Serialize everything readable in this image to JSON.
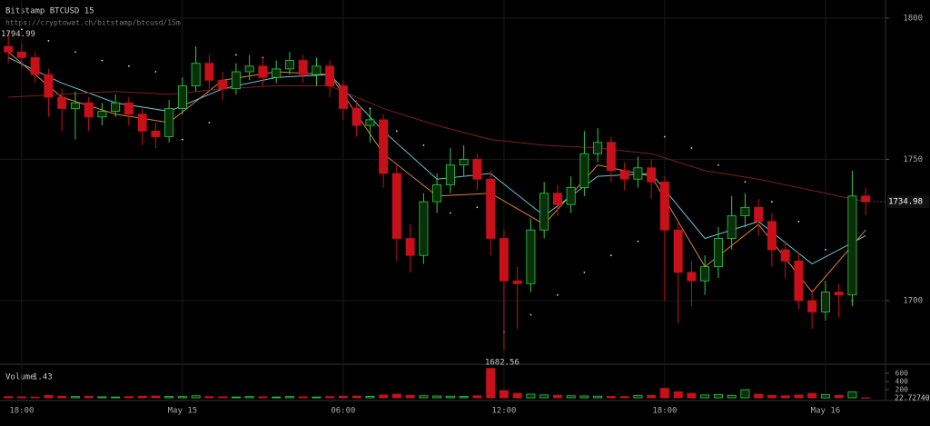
{
  "chart_data": {
    "type": "candlestick",
    "title": "Bitstamp BTCUSD 15",
    "subtitle": "https://cryptowat.ch/bitstamp/btcusd/15m",
    "volume_title": "Volume",
    "x": [
      -0.5,
      0,
      0.5,
      1,
      1.5,
      2,
      2.5,
      3,
      3.5,
      4,
      4.5,
      5,
      5.5,
      6,
      6.5,
      7,
      7.5,
      8,
      8.5,
      9,
      9.5,
      10,
      10.5,
      11,
      11.5,
      12,
      12.5,
      13,
      13.5,
      14,
      14.5,
      15,
      15.5,
      16,
      16.5,
      17,
      17.5,
      18,
      18.5,
      19,
      19.5,
      20,
      20.5,
      21,
      21.5,
      22,
      22.5,
      23,
      23.5,
      24,
      24.5,
      25,
      25.5,
      26,
      26.5,
      27,
      27.5,
      28,
      28.5,
      29,
      29.5,
      30,
      30.5,
      31,
      31.5
    ],
    "open": [
      1790,
      1788,
      1786,
      1780,
      1772,
      1768,
      1770,
      1765,
      1767,
      1770,
      1766,
      1760,
      1758,
      1768,
      1776,
      1784,
      1778,
      1775,
      1781,
      1783,
      1779,
      1782,
      1785,
      1780,
      1783,
      1776,
      1768,
      1762,
      1764,
      1745,
      1722,
      1716,
      1735,
      1741,
      1748,
      1750,
      1743,
      1722,
      1707,
      1706,
      1725,
      1738,
      1734,
      1740,
      1752,
      1756,
      1746,
      1743,
      1747,
      1742,
      1725,
      1710,
      1707,
      1712,
      1722,
      1730,
      1733,
      1728,
      1718,
      1714,
      1700,
      1696,
      1703,
      1702,
      1737
    ],
    "high": [
      1794.99,
      1791,
      1788,
      1782,
      1775,
      1774,
      1772,
      1770,
      1773,
      1772,
      1768,
      1763,
      1771,
      1779,
      1790,
      1787,
      1781,
      1784,
      1787,
      1786,
      1785,
      1788,
      1787,
      1786,
      1785,
      1778,
      1771,
      1768,
      1766,
      1748,
      1727,
      1738,
      1745,
      1754,
      1755,
      1752,
      1746,
      1725,
      1712,
      1729,
      1742,
      1741,
      1744,
      1760,
      1761,
      1758,
      1749,
      1751,
      1750,
      1744,
      1728,
      1714,
      1716,
      1726,
      1737,
      1738,
      1736,
      1731,
      1721,
      1717,
      1704,
      1707,
      1706,
      1746,
      1740
    ],
    "low": [
      1784,
      1782,
      1777,
      1765,
      1760,
      1757,
      1760,
      1762,
      1765,
      1762,
      1755,
      1754,
      1756,
      1766,
      1774,
      1775,
      1771,
      1773,
      1778,
      1776,
      1777,
      1780,
      1777,
      1776,
      1772,
      1764,
      1758,
      1756,
      1740,
      1714,
      1710,
      1713,
      1731,
      1738,
      1744,
      1739,
      1716,
      1682.56,
      1690,
      1703,
      1722,
      1730,
      1731,
      1737,
      1749,
      1742,
      1739,
      1740,
      1736,
      1700,
      1692,
      1698,
      1702,
      1708,
      1718,
      1726,
      1723,
      1712,
      1708,
      1697,
      1690,
      1693,
      1694,
      1698,
      1730
    ],
    "close": [
      1788,
      1786,
      1780,
      1772,
      1768,
      1770,
      1765,
      1767,
      1770,
      1766,
      1760,
      1758,
      1768,
      1776,
      1784,
      1778,
      1775,
      1781,
      1783,
      1779,
      1782,
      1785,
      1780,
      1783,
      1776,
      1768,
      1762,
      1764,
      1745,
      1722,
      1716,
      1735,
      1741,
      1748,
      1750,
      1743,
      1722,
      1707,
      1706,
      1725,
      1738,
      1734,
      1740,
      1752,
      1756,
      1746,
      1743,
      1747,
      1742,
      1725,
      1710,
      1707,
      1712,
      1722,
      1730,
      1733,
      1728,
      1718,
      1714,
      1700,
      1696,
      1703,
      1702,
      1737,
      1734.98
    ],
    "volume": [
      30,
      25,
      20,
      60,
      40,
      30,
      35,
      25,
      20,
      30,
      40,
      45,
      35,
      30,
      50,
      30,
      25,
      20,
      30,
      25,
      20,
      30,
      25,
      20,
      30,
      40,
      45,
      35,
      70,
      90,
      60,
      50,
      45,
      40,
      35,
      50,
      720,
      180,
      110,
      90,
      70,
      60,
      50,
      45,
      40,
      35,
      30,
      55,
      60,
      230,
      150,
      110,
      70,
      80,
      60,
      200,
      90,
      60,
      50,
      70,
      110,
      80,
      60,
      150,
      1.43
    ],
    "volume_ma_last": 22.727403,
    "up_color": "#2ecc40",
    "down_color": "#c8101a",
    "ma_x": [
      -0.5,
      1.5,
      3.5,
      5.5,
      7.5,
      9.5,
      11.5,
      13.5,
      15.5,
      17.5,
      19.5,
      21.5,
      23.5,
      25.5,
      27.5,
      29.5,
      31.5
    ],
    "lines": [
      {
        "color": "#d9823b",
        "values": [
          1788,
          1772,
          1766,
          1763,
          1778,
          1781,
          1780,
          1752,
          1737,
          1738,
          1727,
          1748,
          1744,
          1712,
          1727,
          1703,
          1725
        ]
      },
      {
        "color": "#6fc3d0",
        "values": [
          1786,
          1777,
          1770,
          1767,
          1775,
          1779,
          1780,
          1760,
          1743,
          1745,
          1730,
          1744,
          1745,
          1722,
          1728,
          1713,
          1723
        ]
      },
      {
        "color": "#7a1e22",
        "values": [
          1772,
          1773,
          1774,
          1773,
          1775,
          1776,
          1776,
          1768,
          1762,
          1757,
          1755,
          1754,
          1752,
          1746,
          1743,
          1739,
          1735
        ]
      }
    ],
    "sar_x": [
      0,
      1,
      2,
      3,
      4,
      5,
      6,
      7,
      8,
      9,
      10,
      11,
      12,
      13,
      14,
      15,
      16,
      17,
      18,
      19,
      20,
      21,
      22,
      23,
      24,
      25,
      26,
      27,
      28,
      29,
      30,
      31
    ],
    "sar": [
      1796,
      1792,
      1788,
      1785,
      1783,
      1781,
      1757,
      1763,
      1787,
      1786,
      1784,
      1781,
      1776,
      1768,
      1760,
      1755,
      1731,
      1733,
      1689,
      1695,
      1702,
      1710,
      1716,
      1721,
      1758,
      1754,
      1748,
      1742,
      1735,
      1728,
      1718,
      1700
    ],
    "xlim": [
      -0.81,
      32.24
    ],
    "xticks": [
      {
        "value": 0,
        "label": "18:00"
      },
      {
        "value": 6,
        "label": "May 15"
      },
      {
        "value": 12,
        "label": "06:00"
      },
      {
        "value": 18,
        "label": "12:00"
      },
      {
        "value": 24,
        "label": "18:00"
      },
      {
        "value": 30,
        "label": "May 16"
      }
    ],
    "ylim": [
      1677.8,
      1806.4
    ],
    "yticks": [
      1700,
      1750,
      1800
    ],
    "volume_ylim": [
      0,
      778
    ],
    "volume_yticks": [
      200,
      400,
      600
    ],
    "grid": true
  }
}
